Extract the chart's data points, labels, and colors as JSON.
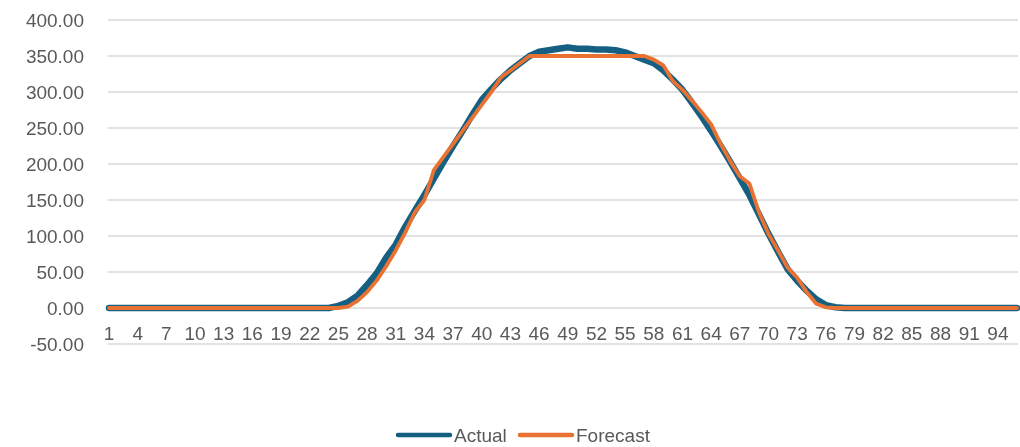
{
  "chart_data": {
    "type": "line",
    "categories": [
      "1",
      null,
      null,
      "4",
      null,
      null,
      "7",
      null,
      null,
      "10",
      null,
      null,
      "13",
      null,
      null,
      "16",
      null,
      null,
      "19",
      null,
      null,
      "22",
      null,
      null,
      "25",
      null,
      null,
      "28",
      null,
      null,
      "31",
      null,
      null,
      "34",
      null,
      null,
      "37",
      null,
      null,
      "40",
      null,
      null,
      "43",
      null,
      null,
      "46",
      null,
      null,
      "49",
      null,
      null,
      "52",
      null,
      null,
      "55",
      null,
      null,
      "58",
      null,
      null,
      "61",
      null,
      null,
      "64",
      null,
      null,
      "67",
      null,
      null,
      "70",
      null,
      null,
      "73",
      null,
      null,
      "76",
      null,
      null,
      "79",
      null,
      null,
      "82",
      null,
      null,
      "85",
      null,
      null,
      "88",
      null,
      null,
      "91",
      null,
      null,
      "94",
      null,
      null
    ],
    "series": [
      {
        "name": "Actual",
        "color": "#156082",
        "values": [
          0,
          0,
          0,
          0,
          0,
          0,
          0,
          0,
          0,
          0,
          0,
          0,
          0,
          0,
          0,
          0,
          0,
          0,
          0,
          0,
          0,
          0,
          0,
          0,
          3,
          8,
          17,
          32,
          48,
          70,
          88,
          113,
          135,
          157,
          180,
          203,
          225,
          246,
          268,
          289,
          304,
          318,
          330,
          340,
          350,
          356,
          358,
          360,
          362,
          360,
          360,
          359,
          359,
          358,
          355,
          350,
          345,
          340,
          330,
          317,
          303,
          285,
          266,
          246,
          225,
          203,
          180,
          157,
          130,
          103,
          78,
          54,
          38,
          24,
          12,
          4,
          1,
          0,
          0,
          0,
          0,
          0,
          0,
          0,
          0,
          0,
          0,
          0,
          0,
          0,
          0,
          0,
          0,
          0,
          0,
          0
        ]
      },
      {
        "name": "Forecast",
        "color": "#e97132",
        "values": [
          0,
          0,
          0,
          0,
          0,
          0,
          0,
          0,
          0,
          0,
          0,
          0,
          0,
          0,
          0,
          0,
          0,
          0,
          0,
          0,
          0,
          0,
          0,
          0,
          0,
          2,
          10,
          22,
          38,
          58,
          80,
          105,
          133,
          150,
          192,
          210,
          228,
          246,
          264,
          282,
          300,
          320,
          330,
          340,
          350,
          350,
          350,
          350,
          350,
          350,
          350,
          350,
          350,
          350,
          350,
          350,
          350,
          345,
          337,
          315,
          303,
          288,
          272,
          255,
          228,
          204,
          183,
          173,
          133,
          103,
          80,
          56,
          42,
          22,
          6,
          1,
          0,
          0,
          0,
          0,
          0,
          0,
          0,
          0,
          0,
          0,
          0,
          0,
          0,
          0,
          0,
          0,
          0,
          0,
          0,
          0
        ]
      }
    ],
    "ylim": [
      -50,
      400
    ],
    "yticks": [
      {
        "value": -50,
        "label": "-50.00"
      },
      {
        "value": 0,
        "label": "0.00"
      },
      {
        "value": 50,
        "label": "50.00"
      },
      {
        "value": 100,
        "label": "100.00"
      },
      {
        "value": 150,
        "label": "150.00"
      },
      {
        "value": 200,
        "label": "200.00"
      },
      {
        "value": 250,
        "label": "250.00"
      },
      {
        "value": 300,
        "label": "300.00"
      },
      {
        "value": 350,
        "label": "350.00"
      },
      {
        "value": 400,
        "label": "400.00"
      }
    ],
    "grid": "y",
    "legend": "bottom"
  }
}
